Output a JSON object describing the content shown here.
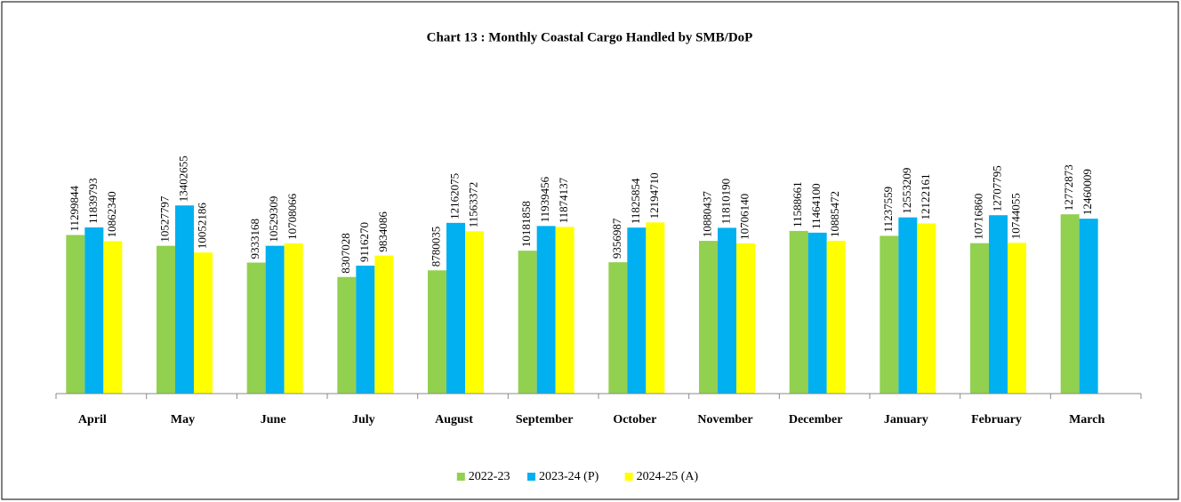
{
  "chart_data": {
    "type": "bar",
    "title": "Chart 13 : Monthly Coastal Cargo Handled by SMB/DoP",
    "categories": [
      "April",
      "May",
      "June",
      "July",
      "August",
      "September",
      "October",
      "November",
      "December",
      "January",
      "February",
      "March"
    ],
    "series": [
      {
        "name": "2022-23",
        "color": "#92d050",
        "values": [
          11299844,
          10527797,
          9333168,
          8307028,
          8780035,
          10181858,
          9356987,
          10880437,
          11588661,
          11237559,
          10716860,
          12772873
        ]
      },
      {
        "name": "2023-24 (P)",
        "color": "#00b0f0",
        "values": [
          11839793,
          13402655,
          10529309,
          9116270,
          12162075,
          11939456,
          11825854,
          11810190,
          11464100,
          12553209,
          12707795,
          12460009
        ]
      },
      {
        "name": "2024-25 (A)",
        "color": "#ffff00",
        "values": [
          10862340,
          10052186,
          10708066,
          9834086,
          11563372,
          11874137,
          12194710,
          10706140,
          10885472,
          12122161,
          10744055,
          null
        ]
      }
    ],
    "ylim": [
      0,
      25000000
    ]
  }
}
